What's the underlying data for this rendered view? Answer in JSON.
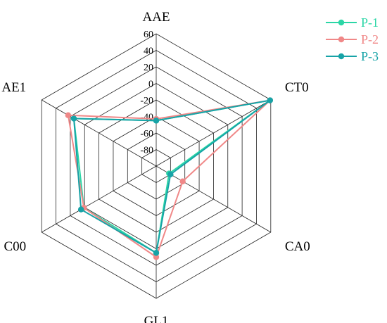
{
  "chart_data": {
    "type": "radar",
    "axes": [
      "AAE",
      "CT0",
      "CA0",
      "GL1",
      "C00",
      "AE1"
    ],
    "rlim": [
      -100,
      60
    ],
    "ticks": [
      -80,
      -60,
      -40,
      -20,
      0,
      20,
      40,
      60
    ],
    "tick_labels": [
      "-80",
      "-60",
      "-40",
      "-20",
      "0",
      "20",
      "40",
      "60"
    ],
    "grid": true,
    "legend_position": "top-right",
    "series": [
      {
        "name": "P-1",
        "color": "#2bd6a6",
        "values": [
          -45,
          59,
          -82,
          5,
          1,
          15
        ]
      },
      {
        "name": "P-2",
        "color": "#f08888",
        "values": [
          -43,
          59,
          -63,
          10,
          1,
          23
        ]
      },
      {
        "name": "P-3",
        "color": "#17a3a7",
        "values": [
          -45,
          59,
          -80,
          5,
          5,
          15
        ]
      }
    ]
  }
}
